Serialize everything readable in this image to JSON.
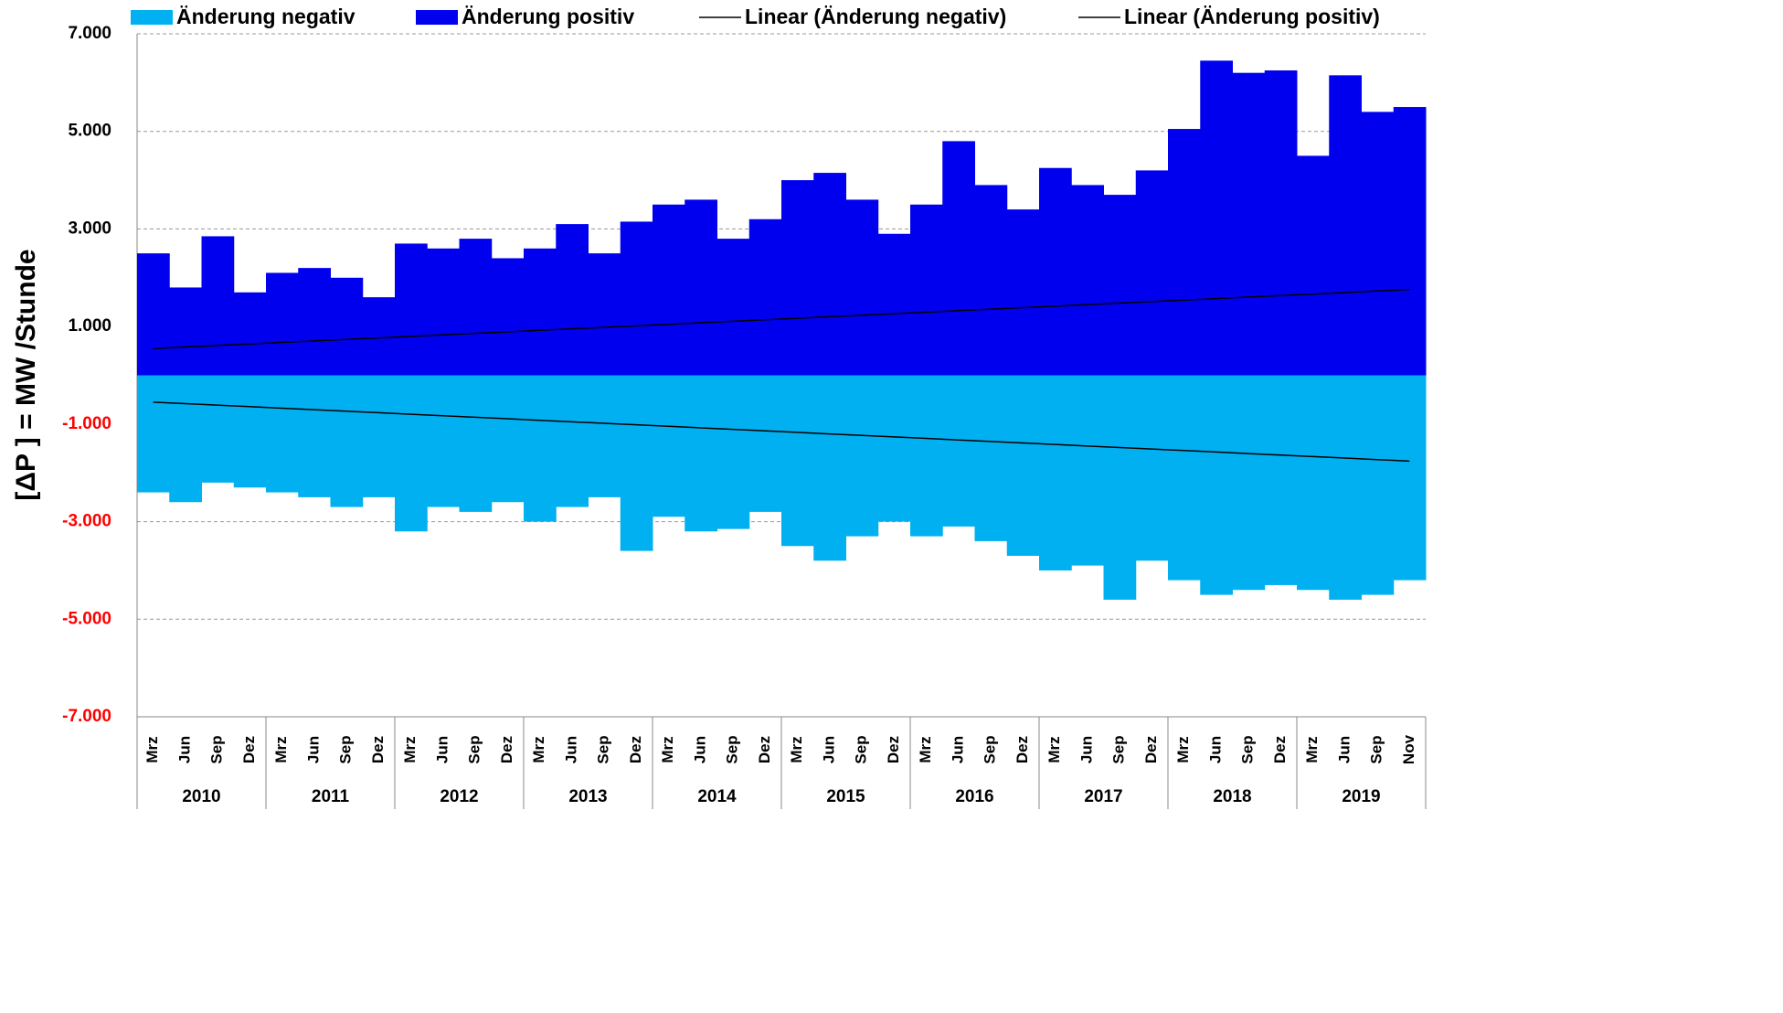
{
  "chart_data": {
    "type": "bar",
    "y_label": "[ΔP ]  =  MW /Stunde",
    "categories": [
      "Mrz",
      "Jun",
      "Sep",
      "Dez",
      "Mrz",
      "Jun",
      "Sep",
      "Dez",
      "Mrz",
      "Jun",
      "Sep",
      "Dez",
      "Mrz",
      "Jun",
      "Sep",
      "Dez",
      "Mrz",
      "Jun",
      "Sep",
      "Dez",
      "Mrz",
      "Jun",
      "Sep",
      "Dez",
      "Mrz",
      "Jun",
      "Sep",
      "Dez",
      "Mrz",
      "Jun",
      "Sep",
      "Dez",
      "Mrz",
      "Jun",
      "Sep",
      "Dez",
      "Mrz",
      "Jun",
      "Sep",
      "Nov"
    ],
    "groups": [
      "2010",
      "2011",
      "2012",
      "2013",
      "2014",
      "2015",
      "2016",
      "2017",
      "2018",
      "2019"
    ],
    "series": [
      {
        "name": "Änderung negativ",
        "kind": "bar",
        "color": "#00b0f0",
        "values": [
          -2400,
          -2600,
          -2200,
          -2300,
          -2400,
          -2500,
          -2700,
          -2500,
          -3200,
          -2700,
          -2800,
          -2600,
          -3000,
          -2700,
          -2500,
          -3600,
          -2900,
          -3200,
          -3150,
          -2800,
          -3500,
          -3800,
          -3300,
          -3000,
          -3300,
          -3100,
          -3400,
          -3700,
          -4000,
          -3900,
          -4600,
          -3800,
          -4200,
          -4500,
          -4400,
          -4300,
          -4400,
          -4600,
          -4500,
          -4200
        ]
      },
      {
        "name": "Änderung positiv",
        "kind": "bar",
        "color": "#0000ee",
        "values": [
          2500,
          1800,
          2850,
          1700,
          2100,
          2200,
          2000,
          1600,
          2700,
          2600,
          2800,
          2400,
          2600,
          3100,
          2500,
          3150,
          3500,
          3600,
          2800,
          3200,
          4000,
          4150,
          3600,
          2900,
          3500,
          4800,
          3900,
          3400,
          4250,
          3900,
          3700,
          4200,
          5050,
          6450,
          6200,
          6250,
          4500,
          6150,
          5400,
          5500
        ]
      },
      {
        "name": "Linear (Änderung negativ)",
        "kind": "line",
        "color": "#000000",
        "values": [
          -550,
          -581,
          -612,
          -643,
          -674,
          -705,
          -736,
          -767,
          -798,
          -829,
          -860,
          -891,
          -922,
          -953,
          -984,
          -1015,
          -1046,
          -1077,
          -1108,
          -1139,
          -1170,
          -1201,
          -1232,
          -1263,
          -1294,
          -1325,
          -1356,
          -1387,
          -1418,
          -1449,
          -1480,
          -1511,
          -1542,
          -1573,
          -1604,
          -1635,
          -1666,
          -1697,
          -1728,
          -1759
        ]
      },
      {
        "name": "Linear (Änderung positiv)",
        "kind": "line",
        "color": "#000000",
        "values": [
          550,
          581,
          612,
          643,
          674,
          705,
          736,
          767,
          798,
          829,
          860,
          891,
          922,
          953,
          984,
          1015,
          1046,
          1077,
          1108,
          1139,
          1170,
          1201,
          1232,
          1263,
          1294,
          1325,
          1356,
          1387,
          1418,
          1449,
          1480,
          1511,
          1542,
          1573,
          1604,
          1635,
          1666,
          1697,
          1728,
          1759
        ]
      }
    ],
    "ylim": [
      -7000,
      7000
    ],
    "yticks": [
      {
        "value": -7000,
        "label": "-7.000"
      },
      {
        "value": -5000,
        "label": "-5.000"
      },
      {
        "value": -3000,
        "label": "-3.000"
      },
      {
        "value": -1000,
        "label": "-1.000"
      },
      {
        "value": 1000,
        "label": "1.000"
      },
      {
        "value": 3000,
        "label": "3.000"
      },
      {
        "value": 5000,
        "label": "5.000"
      },
      {
        "value": 7000,
        "label": "7.000"
      }
    ],
    "grid": true,
    "legend": "top"
  }
}
